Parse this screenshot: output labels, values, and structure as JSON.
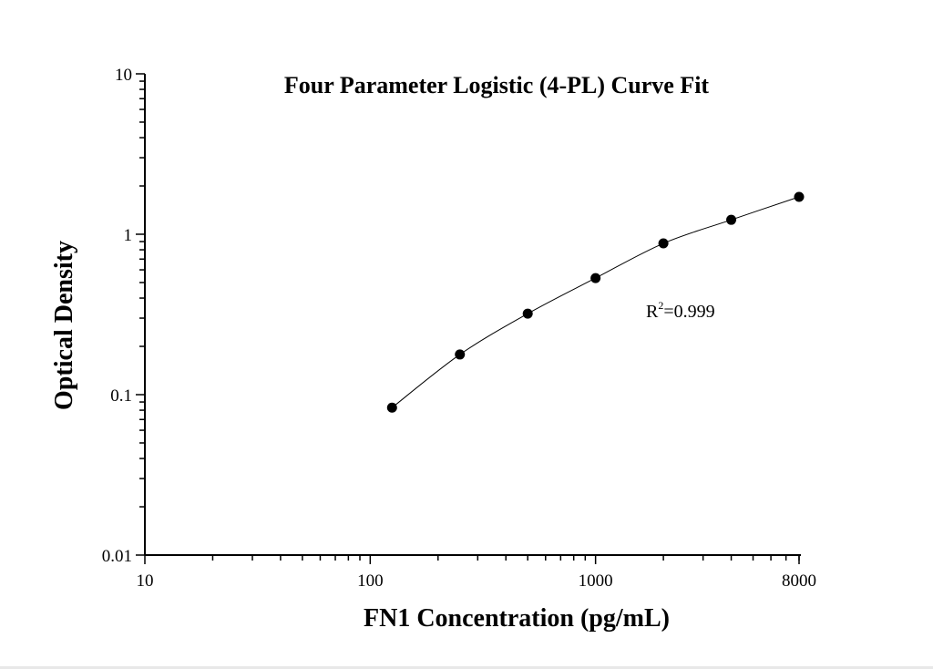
{
  "chart_data": {
    "type": "scatter",
    "title": "Four Parameter Logistic (4-PL) Curve Fit",
    "xlabel": "FN1 Concentration (pg/mL)",
    "ylabel": "Optical Density",
    "xscale": "log",
    "yscale": "log",
    "xlim": [
      10,
      8000
    ],
    "ylim": [
      0.01,
      10
    ],
    "xticks": [
      "10",
      "100",
      "1000",
      "8000"
    ],
    "yticks": [
      "0.01",
      "0.1",
      "1",
      "10"
    ],
    "grid": false,
    "annotation": {
      "base": "R",
      "sup": "2",
      "text": "=0.999"
    },
    "series": [
      {
        "x": [
          125,
          250,
          500,
          1000,
          2000,
          4000,
          8000
        ],
        "y": [
          0.083,
          0.178,
          0.32,
          0.533,
          0.877,
          1.23,
          1.71
        ],
        "marker": "circle",
        "fit": "4-PL curve",
        "color": "#000000"
      }
    ]
  }
}
